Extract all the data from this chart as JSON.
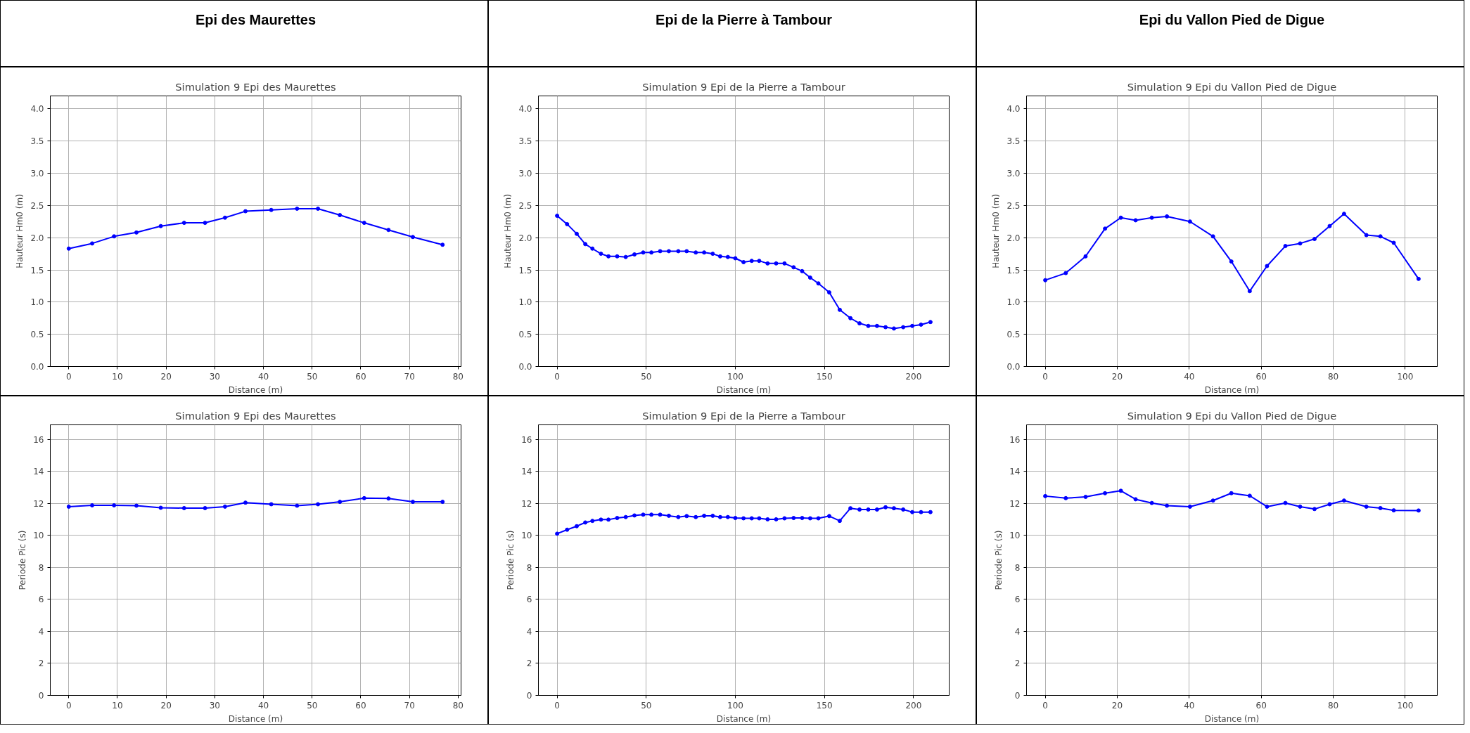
{
  "chart_data": [
    {
      "type": "other",
      "title": "Epi des Maurettes"
    },
    {
      "type": "other",
      "title": "Epi de la Pierre à Tambour"
    },
    {
      "type": "other",
      "title": "Epi du Vallon Pied de Digue"
    },
    {
      "type": "line",
      "title": "Simulation 9 Epi des Maurettes",
      "xlabel": "Distance (m)",
      "ylabel": "Hauteur Hm0 (m)",
      "grid": true,
      "marker": "circle",
      "line_style": "solid",
      "xlim": [
        -3.8,
        80.6
      ],
      "ylim": [
        0,
        4.2
      ],
      "xticks": [
        0,
        10,
        20,
        30,
        40,
        50,
        60,
        70,
        80
      ],
      "yticks": [
        {
          "value": 0,
          "label": "0.0"
        },
        0.5,
        {
          "value": 1,
          "label": "1.0"
        },
        1.5,
        {
          "value": 2,
          "label": "2.0"
        },
        2.5,
        {
          "value": 3,
          "label": "3.0"
        },
        3.5,
        {
          "value": 4,
          "label": "4.0"
        }
      ],
      "series": [
        {
          "color": "#0000ff",
          "x": [
            0,
            4.8,
            9.3,
            13.9,
            18.9,
            23.7,
            28.0,
            32.1,
            36.3,
            41.6,
            46.9,
            51.2,
            55.7,
            60.7,
            65.7,
            70.7,
            76.8
          ],
          "values": [
            1.83,
            1.91,
            2.02,
            2.08,
            2.18,
            2.23,
            2.23,
            2.31,
            2.41,
            2.43,
            2.45,
            2.45,
            2.35,
            2.23,
            2.12,
            2.01,
            1.89
          ]
        }
      ]
    },
    {
      "type": "line",
      "title": "Simulation 9 Epi de la Pierre a Tambour",
      "xlabel": "Distance (m)",
      "ylabel": "Hauteur Hm0 (m)",
      "grid": true,
      "marker": "circle",
      "line_style": "solid",
      "xlim": [
        -10.5,
        220
      ],
      "ylim": [
        0,
        4.2
      ],
      "xticks": [
        0,
        50,
        100,
        150,
        200
      ],
      "yticks": [
        {
          "value": 0,
          "label": "0.0"
        },
        0.5,
        {
          "value": 1,
          "label": "1.0"
        },
        1.5,
        {
          "value": 2,
          "label": "2.0"
        },
        2.5,
        {
          "value": 3,
          "label": "3.0"
        },
        3.5,
        {
          "value": 4,
          "label": "4.0"
        }
      ],
      "series": [
        {
          "color": "#0000ff",
          "x": [
            0,
            5.6,
            11,
            15.8,
            19.8,
            24.6,
            28.8,
            33.7,
            38.5,
            43.4,
            48.3,
            52.9,
            57.8,
            62.7,
            68,
            72.7,
            77.8,
            82.5,
            87.3,
            91.5,
            95.8,
            100,
            104.6,
            109.2,
            113.4,
            118.1,
            122.9,
            127.6,
            132.7,
            137.5,
            142,
            146.6,
            152.7,
            158.6,
            164.6,
            169.7,
            174.6,
            179.5,
            184.3,
            189,
            194.2,
            199.3,
            204.2,
            209.5
          ],
          "values": [
            2.34,
            2.21,
            2.06,
            1.9,
            1.83,
            1.75,
            1.71,
            1.71,
            1.7,
            1.74,
            1.77,
            1.77,
            1.79,
            1.79,
            1.79,
            1.79,
            1.77,
            1.77,
            1.75,
            1.71,
            1.7,
            1.68,
            1.62,
            1.64,
            1.64,
            1.6,
            1.6,
            1.6,
            1.54,
            1.48,
            1.38,
            1.29,
            1.15,
            0.88,
            0.75,
            0.67,
            0.63,
            0.63,
            0.61,
            0.59,
            0.61,
            0.63,
            0.65,
            0.69
          ]
        }
      ]
    },
    {
      "type": "line",
      "title": "Simulation 9 Epi du Vallon Pied de Digue",
      "xlabel": "Distance (m)",
      "ylabel": "Hauteur Hm0 (m)",
      "grid": true,
      "marker": "circle",
      "line_style": "solid",
      "xlim": [
        -5.2,
        108.9
      ],
      "ylim": [
        0,
        4.2
      ],
      "xticks": [
        0,
        20,
        40,
        60,
        80,
        100
      ],
      "yticks": [
        {
          "value": 0,
          "label": "0.0"
        },
        0.5,
        {
          "value": 1,
          "label": "1.0"
        },
        1.5,
        {
          "value": 2,
          "label": "2.0"
        },
        2.5,
        {
          "value": 3,
          "label": "3.0"
        },
        3.5,
        {
          "value": 4,
          "label": "4.0"
        }
      ],
      "series": [
        {
          "color": "#0000ff",
          "x": [
            0,
            5.7,
            11.2,
            16.6,
            21,
            25.1,
            29.6,
            33.8,
            40.2,
            46.6,
            51.7,
            56.8,
            61.6,
            66.7,
            70.8,
            74.8,
            79,
            83,
            89.2,
            93.1,
            96.8,
            103.7
          ],
          "values": [
            1.34,
            1.45,
            1.71,
            2.14,
            2.31,
            2.27,
            2.31,
            2.33,
            2.25,
            2.02,
            1.63,
            1.17,
            1.56,
            1.87,
            1.91,
            1.98,
            2.18,
            2.37,
            2.04,
            2.02,
            1.92,
            1.36
          ]
        }
      ]
    },
    {
      "type": "line",
      "title": "Simulation 9 Epi des Maurettes",
      "xlabel": "Distance (m)",
      "ylabel": "Periode Pic (s)",
      "grid": true,
      "marker": "circle",
      "line_style": "solid",
      "xlim": [
        -3.8,
        80.6
      ],
      "ylim": [
        0,
        16.9
      ],
      "xticks": [
        0,
        10,
        20,
        30,
        40,
        50,
        60,
        70,
        80
      ],
      "yticks": [
        0,
        2,
        4,
        6,
        8,
        10,
        12,
        14,
        16
      ],
      "series": [
        {
          "color": "#0000ff",
          "x": [
            0,
            4.8,
            9.3,
            13.9,
            18.9,
            23.7,
            28.0,
            32.1,
            36.3,
            41.6,
            46.9,
            51.2,
            55.7,
            60.7,
            65.7,
            70.7,
            76.8
          ],
          "values": [
            11.79,
            11.87,
            11.87,
            11.85,
            11.72,
            11.7,
            11.7,
            11.79,
            12.04,
            11.94,
            11.85,
            11.94,
            12.09,
            12.32,
            12.3,
            12.09,
            12.09
          ]
        }
      ]
    },
    {
      "type": "line",
      "title": "Simulation 9 Epi de la Pierre a Tambour",
      "xlabel": "Distance (m)",
      "ylabel": "Periode Pic (s)",
      "grid": true,
      "marker": "circle",
      "line_style": "solid",
      "xlim": [
        -10.5,
        220
      ],
      "ylim": [
        0,
        16.9
      ],
      "xticks": [
        0,
        50,
        100,
        150,
        200
      ],
      "yticks": [
        0,
        2,
        4,
        6,
        8,
        10,
        12,
        14,
        16
      ],
      "series": [
        {
          "color": "#0000ff",
          "x": [
            0,
            5.6,
            11,
            15.8,
            19.8,
            24.6,
            28.8,
            33.7,
            38.5,
            43.4,
            48.3,
            52.9,
            57.8,
            62.7,
            68,
            72.7,
            77.8,
            82.5,
            87.3,
            91.5,
            95.8,
            100,
            104.6,
            109.2,
            113.4,
            118.1,
            122.9,
            127.6,
            132.7,
            137.5,
            142,
            146.6,
            152.7,
            158.6,
            164.6,
            169.7,
            174.6,
            179.5,
            184.3,
            189,
            194.2,
            199.3,
            204.2,
            209.5
          ],
          "values": [
            10.1,
            10.35,
            10.57,
            10.8,
            10.9,
            10.98,
            10.98,
            11.08,
            11.14,
            11.24,
            11.29,
            11.29,
            11.29,
            11.22,
            11.14,
            11.2,
            11.14,
            11.22,
            11.22,
            11.14,
            11.14,
            11.08,
            11.06,
            11.06,
            11.06,
            11.0,
            11.0,
            11.06,
            11.08,
            11.08,
            11.06,
            11.06,
            11.2,
            10.9,
            11.69,
            11.61,
            11.61,
            11.61,
            11.75,
            11.69,
            11.61,
            11.45,
            11.45,
            11.45
          ]
        }
      ]
    },
    {
      "type": "line",
      "title": "Simulation 9 Epi du Vallon Pied de Digue",
      "xlabel": "Distance (m)",
      "ylabel": "Periode Pic (s)",
      "grid": true,
      "marker": "circle",
      "line_style": "solid",
      "xlim": [
        -5.2,
        108.9
      ],
      "ylim": [
        0,
        16.9
      ],
      "xticks": [
        0,
        20,
        40,
        60,
        80,
        100
      ],
      "yticks": [
        0,
        2,
        4,
        6,
        8,
        10,
        12,
        14,
        16
      ],
      "series": [
        {
          "color": "#0000ff",
          "x": [
            0,
            5.7,
            11.2,
            16.6,
            21,
            25.1,
            29.6,
            33.8,
            40.2,
            46.6,
            51.7,
            56.8,
            61.6,
            66.7,
            70.8,
            74.8,
            79,
            83,
            89.2,
            93.1,
            96.8,
            103.7
          ],
          "values": [
            12.45,
            12.32,
            12.4,
            12.63,
            12.78,
            12.25,
            12.02,
            11.85,
            11.79,
            12.17,
            12.63,
            12.47,
            11.79,
            12.02,
            11.79,
            11.64,
            11.94,
            12.17,
            11.79,
            11.7,
            11.56,
            11.55
          ]
        }
      ]
    }
  ]
}
